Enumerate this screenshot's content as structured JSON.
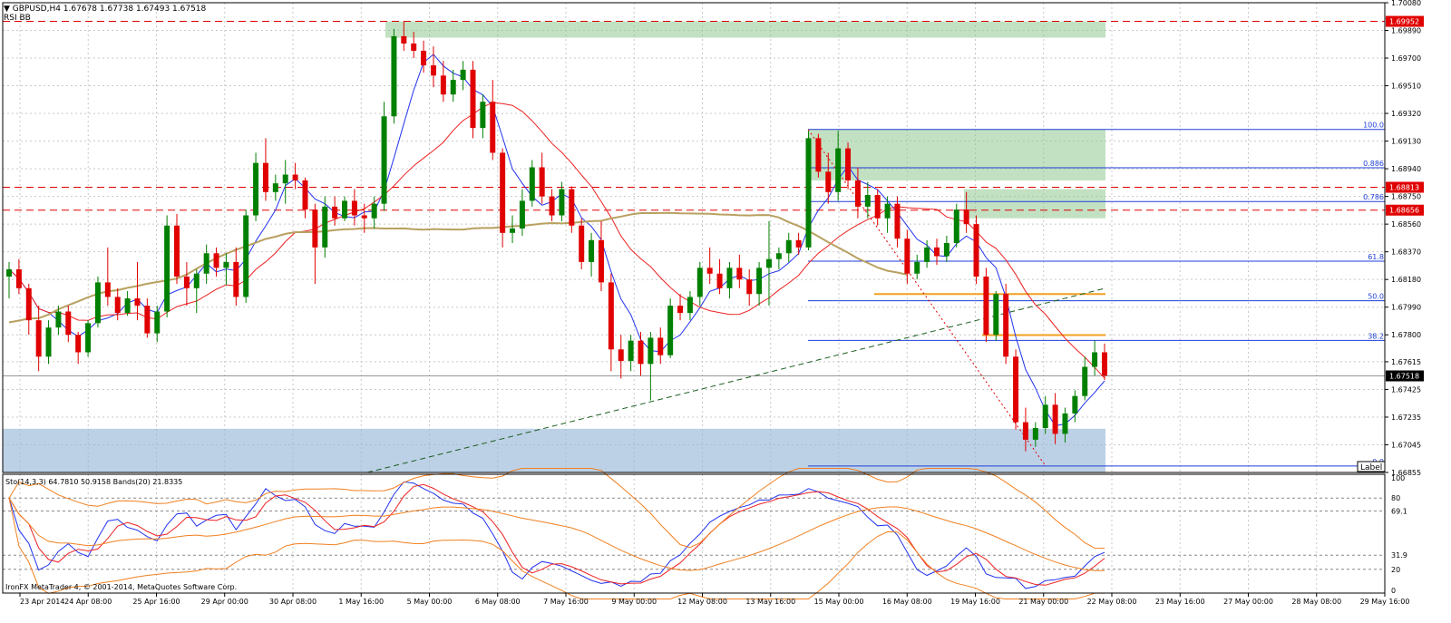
{
  "window": {
    "header": "▼ GBPUSD,H4  1.67678 1.67738 1.67493 1.67518",
    "indicators": "RSI  BB",
    "watermark": "IronFX MetaTrader 4, © 2001-2014, MetaQuotes Software Corp."
  },
  "subwindow": {
    "header": "Sto(14,3,3) 64.7810 50.9158   Bands(20) 21.8335",
    "levels": [
      "80",
      "69.1",
      "31.9",
      "20"
    ],
    "ymax_label": "100",
    "ymin_label": "0"
  },
  "price_axis": {
    "ticks": [
      "1.70080",
      "1.69890",
      "1.69700",
      "1.69510",
      "1.69320",
      "1.69130",
      "1.68940",
      "1.68750",
      "1.68560",
      "1.68370",
      "1.68180",
      "1.67990",
      "1.67800",
      "1.67615",
      "1.67425",
      "1.67235",
      "1.67045",
      "1.66855"
    ],
    "highlighted": [
      {
        "label": "1.69952",
        "price": 1.69952,
        "bg": "#e00000"
      },
      {
        "label": "1.68813",
        "price": 1.68813,
        "bg": "#e00000"
      },
      {
        "label": "1.68656",
        "price": 1.68656,
        "bg": "#e00000"
      },
      {
        "label": "1.67518",
        "price": 1.67518,
        "bg": "#000000"
      }
    ],
    "label_tag": "Label"
  },
  "time_axis": {
    "labels": [
      "23 Apr 2014",
      "24 Apr 08:00",
      "25 Apr 16:00",
      "29 Apr 00:00",
      "30 Apr 08:00",
      "1 May 16:00",
      "5 May 00:00",
      "6 May 08:00",
      "7 May 16:00",
      "9 May 00:00",
      "12 May 08:00",
      "13 May 16:00",
      "15 May 00:00",
      "16 May 08:00",
      "19 May 16:00",
      "21 May 00:00",
      "22 May 08:00",
      "23 May 16:00",
      "27 May 00:00",
      "28 May 08:00",
      "29 May 16:00"
    ]
  },
  "fibo": {
    "levels": [
      {
        "label": "100.0",
        "price": 1.6921
      },
      {
        "label": "0.886",
        "price": 1.68947
      },
      {
        "label": "0.786",
        "price": 1.68715
      },
      {
        "label": "61.8",
        "price": 1.68306
      },
      {
        "label": "50.0",
        "price": 1.68034
      },
      {
        "label": "38.2",
        "price": 1.67762
      },
      {
        "label": "0.0",
        "price": 1.66899
      }
    ]
  },
  "colors": {
    "bull": "#008000",
    "bear": "#e00000",
    "grid": "#c8c8c8",
    "axis": "#000000",
    "ma_fast": "#2233ee",
    "ma_mid": "#ee2222",
    "ma_slow": "#b8a060",
    "fibo": "#1f3fd8",
    "zone_green": "#8fc88f",
    "zone_blue": "#9ab8d8",
    "orange": "#f0a020",
    "stoch_main": "#2233ee",
    "stoch_signal": "#ee2222",
    "bands": "#f08020"
  },
  "chart_data": {
    "type": "candlestick",
    "symbol": "GBPUSD",
    "timeframe": "H4",
    "ylim": [
      1.66855,
      1.7008
    ],
    "candles": [
      [
        1.682,
        1.683,
        1.6805,
        1.6825
      ],
      [
        1.6825,
        1.6832,
        1.6808,
        1.6812
      ],
      [
        1.6812,
        1.6815,
        1.678,
        1.679
      ],
      [
        1.679,
        1.68,
        1.6755,
        1.6765
      ],
      [
        1.6765,
        1.679,
        1.676,
        1.6785
      ],
      [
        1.6785,
        1.68,
        1.678,
        1.6796
      ],
      [
        1.6796,
        1.68,
        1.6775,
        1.678
      ],
      [
        1.678,
        1.6782,
        1.676,
        1.6768
      ],
      [
        1.6768,
        1.679,
        1.6765,
        1.6788
      ],
      [
        1.6788,
        1.682,
        1.6785,
        1.6816
      ],
      [
        1.6816,
        1.684,
        1.68,
        1.6806
      ],
      [
        1.6806,
        1.6812,
        1.679,
        1.6795
      ],
      [
        1.6795,
        1.681,
        1.6793,
        1.6805
      ],
      [
        1.6805,
        1.683,
        1.679,
        1.68
      ],
      [
        1.68,
        1.6805,
        1.6778,
        1.6781
      ],
      [
        1.6781,
        1.68,
        1.6775,
        1.6796
      ],
      [
        1.6796,
        1.6862,
        1.6792,
        1.6855
      ],
      [
        1.6855,
        1.6863,
        1.6815,
        1.682
      ],
      [
        1.682,
        1.683,
        1.68,
        1.6812
      ],
      [
        1.6812,
        1.6825,
        1.6795,
        1.6822
      ],
      [
        1.6822,
        1.6842,
        1.6815,
        1.6836
      ],
      [
        1.6836,
        1.684,
        1.682,
        1.6826
      ],
      [
        1.6826,
        1.6836,
        1.6814,
        1.683
      ],
      [
        1.683,
        1.684,
        1.68,
        1.6806
      ],
      [
        1.6806,
        1.6866,
        1.6802,
        1.6862
      ],
      [
        1.6862,
        1.6905,
        1.6858,
        1.6898
      ],
      [
        1.6898,
        1.6915,
        1.6872,
        1.6878
      ],
      [
        1.6878,
        1.689,
        1.6872,
        1.6884
      ],
      [
        1.6884,
        1.69,
        1.687,
        1.689
      ],
      [
        1.689,
        1.6898,
        1.688,
        1.6886
      ],
      [
        1.6886,
        1.6888,
        1.686,
        1.6866
      ],
      [
        1.6866,
        1.687,
        1.6815,
        1.684
      ],
      [
        1.684,
        1.6875,
        1.6833,
        1.6868
      ],
      [
        1.6868,
        1.6875,
        1.6855,
        1.686
      ],
      [
        1.686,
        1.6875,
        1.6858,
        1.6872
      ],
      [
        1.6872,
        1.688,
        1.6855,
        1.6862
      ],
      [
        1.6862,
        1.687,
        1.685,
        1.686
      ],
      [
        1.686,
        1.6875,
        1.6853,
        1.687
      ],
      [
        1.687,
        1.694,
        1.6865,
        1.693
      ],
      [
        1.693,
        1.699,
        1.6925,
        1.6985
      ],
      [
        1.6985,
        1.6995,
        1.6975,
        1.698
      ],
      [
        1.698,
        1.6988,
        1.697,
        1.6975
      ],
      [
        1.6975,
        1.6982,
        1.696,
        1.6965
      ],
      [
        1.6965,
        1.6978,
        1.695,
        1.6958
      ],
      [
        1.6958,
        1.6968,
        1.694,
        1.6945
      ],
      [
        1.6945,
        1.6962,
        1.694,
        1.6955
      ],
      [
        1.6955,
        1.6968,
        1.6948,
        1.6962
      ],
      [
        1.6962,
        1.6968,
        1.6915,
        1.6922
      ],
      [
        1.6922,
        1.6945,
        1.6915,
        1.694
      ],
      [
        1.694,
        1.6955,
        1.69,
        1.6905
      ],
      [
        1.6905,
        1.6908,
        1.684,
        1.685
      ],
      [
        1.685,
        1.6862,
        1.6843,
        1.6853
      ],
      [
        1.6853,
        1.688,
        1.6848,
        1.6872
      ],
      [
        1.6872,
        1.69,
        1.6868,
        1.6895
      ],
      [
        1.6895,
        1.6905,
        1.687,
        1.6875
      ],
      [
        1.6875,
        1.688,
        1.6858,
        1.6862
      ],
      [
        1.6862,
        1.6885,
        1.6858,
        1.688
      ],
      [
        1.688,
        1.6882,
        1.685,
        1.6855
      ],
      [
        1.6855,
        1.686,
        1.6825,
        1.683
      ],
      [
        1.683,
        1.685,
        1.682,
        1.6845
      ],
      [
        1.6845,
        1.6858,
        1.681,
        1.6816
      ],
      [
        1.6816,
        1.6822,
        1.6755,
        1.677
      ],
      [
        1.677,
        1.678,
        1.675,
        1.6762
      ],
      [
        1.6762,
        1.678,
        1.6755,
        1.6776
      ],
      [
        1.6776,
        1.6782,
        1.6752,
        1.676
      ],
      [
        1.676,
        1.6782,
        1.6735,
        1.6778
      ],
      [
        1.6778,
        1.6785,
        1.676,
        1.6766
      ],
      [
        1.6766,
        1.6805,
        1.6764,
        1.68
      ],
      [
        1.68,
        1.6808,
        1.679,
        1.6795
      ],
      [
        1.6795,
        1.681,
        1.679,
        1.6806
      ],
      [
        1.6806,
        1.683,
        1.68,
        1.6826
      ],
      [
        1.6826,
        1.684,
        1.6815,
        1.6822
      ],
      [
        1.6822,
        1.6832,
        1.6808,
        1.6812
      ],
      [
        1.6812,
        1.683,
        1.6805,
        1.6826
      ],
      [
        1.6826,
        1.6835,
        1.6812,
        1.6818
      ],
      [
        1.6818,
        1.6825,
        1.68,
        1.6808
      ],
      [
        1.6808,
        1.683,
        1.68,
        1.6826
      ],
      [
        1.6826,
        1.6858,
        1.68,
        1.6832
      ],
      [
        1.6832,
        1.684,
        1.6825,
        1.6836
      ],
      [
        1.6836,
        1.685,
        1.683,
        1.6845
      ],
      [
        1.6845,
        1.685,
        1.6835,
        1.684
      ],
      [
        1.684,
        1.692,
        1.6838,
        1.6915
      ],
      [
        1.6915,
        1.6918,
        1.6888,
        1.6892
      ],
      [
        1.6892,
        1.6905,
        1.687,
        1.6878
      ],
      [
        1.6878,
        1.692,
        1.6872,
        1.6908
      ],
      [
        1.6908,
        1.6912,
        1.688,
        1.6886
      ],
      [
        1.6886,
        1.6895,
        1.686,
        1.6868
      ],
      [
        1.6868,
        1.6885,
        1.686,
        1.6876
      ],
      [
        1.6876,
        1.688,
        1.6855,
        1.686
      ],
      [
        1.686,
        1.6875,
        1.685,
        1.687
      ],
      [
        1.687,
        1.6875,
        1.684,
        1.6846
      ],
      [
        1.6846,
        1.6852,
        1.6815,
        1.6822
      ],
      [
        1.6822,
        1.6835,
        1.6818,
        1.683
      ],
      [
        1.683,
        1.6845,
        1.6826,
        1.684
      ],
      [
        1.684,
        1.6846,
        1.6828,
        1.6834
      ],
      [
        1.6834,
        1.6848,
        1.683,
        1.6843
      ],
      [
        1.6843,
        1.687,
        1.684,
        1.6866
      ],
      [
        1.6866,
        1.6878,
        1.685,
        1.6856
      ],
      [
        1.6856,
        1.6862,
        1.6815,
        1.682
      ],
      [
        1.682,
        1.6826,
        1.6775,
        1.678
      ],
      [
        1.678,
        1.681,
        1.6776,
        1.6808
      ],
      [
        1.6808,
        1.6815,
        1.676,
        1.6765
      ],
      [
        1.6765,
        1.677,
        1.6715,
        1.672
      ],
      [
        1.672,
        1.673,
        1.67,
        1.6708
      ],
      [
        1.6708,
        1.672,
        1.6703,
        1.6716
      ],
      [
        1.6716,
        1.6738,
        1.6712,
        1.6732
      ],
      [
        1.6732,
        1.674,
        1.6705,
        1.6712
      ],
      [
        1.6712,
        1.673,
        1.6706,
        1.6726
      ],
      [
        1.6726,
        1.6742,
        1.672,
        1.6738
      ],
      [
        1.6738,
        1.6765,
        1.6735,
        1.6758
      ],
      [
        1.6758,
        1.6776,
        1.6752,
        1.6768
      ],
      [
        1.6768,
        1.6774,
        1.6749,
        1.6752
      ]
    ],
    "zones": [
      {
        "name": "resistance-zone-top",
        "price_top": 1.69952,
        "price_bottom": 1.6984
      },
      {
        "name": "supply-zone-upper",
        "price_top": 1.6921,
        "price_bottom": 1.6886
      },
      {
        "name": "supply-zone-lower",
        "price_top": 1.688,
        "price_bottom": 1.686
      },
      {
        "name": "demand-zone",
        "price_top": 1.67155,
        "price_bottom": 1.66855
      }
    ],
    "horizontal_lines": [
      1.69952,
      1.68813,
      1.68656
    ],
    "stochastic": {
      "levels": [
        80,
        69.1,
        31.9,
        20
      ]
    }
  }
}
